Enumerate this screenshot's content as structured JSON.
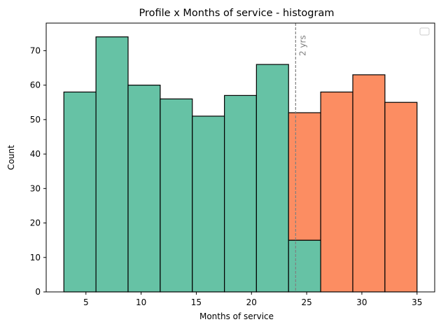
{
  "chart_data": {
    "type": "bar",
    "title": "Profile x Months of service - histogram",
    "xlabel": "Months of service",
    "ylabel": "Count",
    "xlim": [
      1.4,
      36.6
    ],
    "ylim": [
      0,
      78
    ],
    "xticks": [
      5,
      10,
      15,
      20,
      25,
      30,
      35
    ],
    "yticks": [
      0,
      10,
      20,
      30,
      40,
      50,
      60,
      70
    ],
    "bin_edges": [
      3,
      5.91,
      8.82,
      11.73,
      14.64,
      17.55,
      20.45,
      23.36,
      26.27,
      29.18,
      32.09,
      35
    ],
    "series": [
      {
        "color": "#66c2a5",
        "values": [
          58,
          74,
          60,
          56,
          51,
          57,
          66,
          15,
          0,
          0,
          0
        ]
      },
      {
        "color": "#fc8d62",
        "values": [
          0,
          0,
          0,
          0,
          0,
          0,
          0,
          37,
          58,
          63,
          55
        ]
      }
    ],
    "stacked": true,
    "reference_line": {
      "x": 24,
      "label": "2 yrs",
      "color": "#808080",
      "style": "dashed"
    },
    "legend": {
      "placement": "top-right",
      "entries": []
    },
    "grid": false
  }
}
